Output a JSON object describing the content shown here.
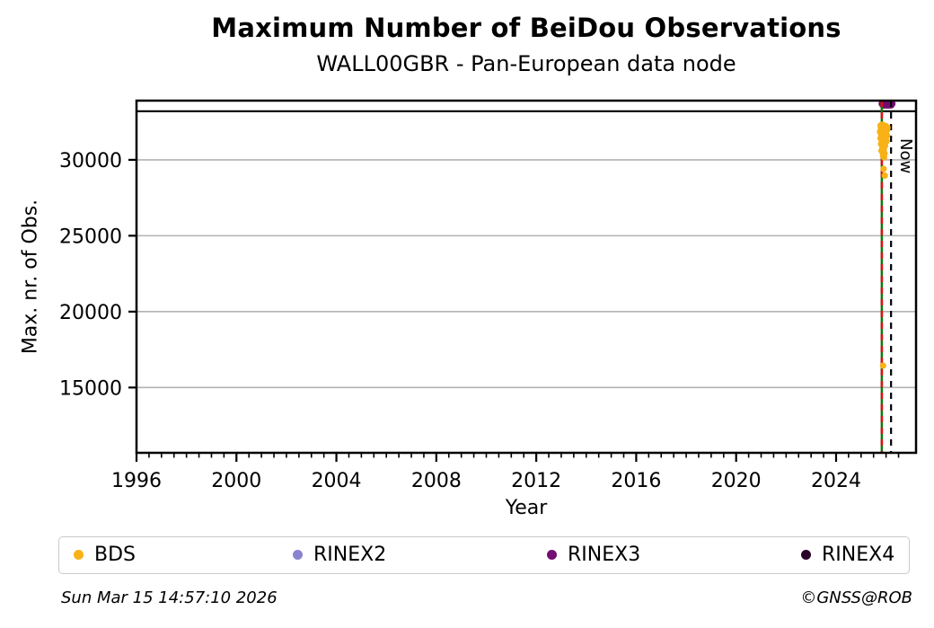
{
  "header": {
    "title": "Maximum Number of BeiDou Observations",
    "subtitle": "WALL00GBR - Pan-European data node"
  },
  "footer": {
    "timestamp": "Sun Mar 15 14:57:10 2026",
    "credit": "©GNSS@ROB"
  },
  "chart_data": {
    "type": "scatter",
    "title": "Maximum Number of BeiDou Observations",
    "subtitle": "WALL00GBR - Pan-European data node",
    "xlabel": "Year",
    "ylabel": "Max. nr. of Obs.",
    "xlim": [
      1996,
      2027.2
    ],
    "ylim": [
      10700,
      33900
    ],
    "x_major_ticks": [
      1996,
      2000,
      2004,
      2008,
      2012,
      2016,
      2020,
      2024
    ],
    "x_minor_step": 0.5,
    "x_minor_end": 2026.5,
    "y_ticks": [
      15000,
      20000,
      25000,
      30000
    ],
    "grid": "horizontal",
    "grid_color": "#b2b2b2",
    "frame_color": "#000000",
    "hlines": [
      {
        "name": "max-line",
        "value": 33200,
        "color": "#000000",
        "style": "solid",
        "width": 2.2
      }
    ],
    "vlines": [
      {
        "name": "event-line-green",
        "year": 2025.83,
        "color": "#0a7a0a",
        "style": "solid",
        "width": 2.5,
        "label": ""
      },
      {
        "name": "event-line-red",
        "year": 2025.83,
        "color": "#dd1111",
        "style": "dashed",
        "width": 2.5,
        "label": ""
      },
      {
        "name": "now-line",
        "year": 2026.2,
        "color": "#000000",
        "style": "dashed",
        "width": 2.2,
        "label": "Now"
      }
    ],
    "legend": {
      "position": "bottom",
      "entries": [
        {
          "label": "BDS",
          "color": "#f8b117",
          "offset": 16
        },
        {
          "label": "RINEX2",
          "color": "#8a84cf",
          "offset": 260
        },
        {
          "label": "RINEX3",
          "color": "#740d74",
          "offset": 543
        },
        {
          "label": "RINEX4",
          "color": "#270329",
          "offset": 826
        }
      ]
    },
    "series": [
      {
        "name": "BDS",
        "color": "#f8b117",
        "marker_r": 3.6,
        "points": [
          [
            2025.78,
            32250
          ],
          [
            2025.82,
            32310
          ],
          [
            2025.86,
            32200
          ],
          [
            2025.9,
            32280
          ],
          [
            2025.94,
            32150
          ],
          [
            2025.98,
            32230
          ],
          [
            2026.02,
            32180
          ],
          [
            2026.06,
            32120
          ],
          [
            2025.8,
            32060
          ],
          [
            2025.88,
            32020
          ],
          [
            2025.96,
            32090
          ],
          [
            2026.04,
            31980
          ],
          [
            2025.76,
            31850
          ],
          [
            2025.8,
            31700
          ],
          [
            2025.84,
            31900
          ],
          [
            2025.88,
            31760
          ],
          [
            2025.92,
            31820
          ],
          [
            2025.96,
            31650
          ],
          [
            2026.0,
            31740
          ],
          [
            2026.04,
            31580
          ],
          [
            2025.78,
            31420
          ],
          [
            2025.82,
            31500
          ],
          [
            2025.86,
            31310
          ],
          [
            2025.9,
            31460
          ],
          [
            2025.94,
            31540
          ],
          [
            2025.98,
            31360
          ],
          [
            2026.02,
            31240
          ],
          [
            2025.8,
            31060
          ],
          [
            2025.84,
            30920
          ],
          [
            2025.88,
            31000
          ],
          [
            2025.92,
            30820
          ],
          [
            2025.96,
            30940
          ],
          [
            2025.82,
            30610
          ],
          [
            2025.86,
            30500
          ],
          [
            2025.9,
            30660
          ],
          [
            2025.94,
            30420
          ],
          [
            2025.88,
            30260
          ],
          [
            2025.92,
            30160
          ],
          [
            2025.9,
            29400
          ],
          [
            2025.95,
            28960
          ],
          [
            2025.88,
            16440
          ]
        ]
      },
      {
        "name": "RINEX2",
        "color": "#8a84cf",
        "marker_r": 3.6,
        "points": []
      },
      {
        "name": "RINEX3",
        "color": "#740d74",
        "marker_r": 4.5,
        "points": [
          [
            2025.86,
            33700
          ],
          [
            2025.89,
            33640
          ],
          [
            2025.92,
            33700
          ],
          [
            2025.95,
            33640
          ],
          [
            2025.98,
            33700
          ],
          [
            2026.01,
            33640
          ],
          [
            2026.04,
            33700
          ],
          [
            2026.07,
            33640
          ],
          [
            2026.1,
            33700
          ],
          [
            2026.13,
            33640
          ],
          [
            2026.16,
            33700
          ],
          [
            2026.19,
            33640
          ],
          [
            2026.22,
            33700
          ]
        ]
      },
      {
        "name": "RINEX4",
        "color": "#270329",
        "marker_r": 3.6,
        "points": []
      }
    ]
  }
}
